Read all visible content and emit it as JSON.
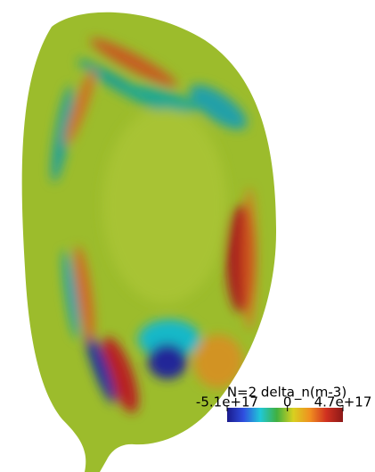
{
  "chart_data": {
    "type": "heatmap",
    "title": "N=2 delta_n(m-3)",
    "clim": [
      -5.1e+17,
      4.7e+17
    ],
    "cticks": [
      {
        "value": -5.1e+17,
        "label": "-5.1e+17"
      },
      0,
      {
        "value": 4.7e+17,
        "label": "4.7e+17"
      }
    ],
    "colormap": [
      "#1a1a8c",
      "#2f4fe0",
      "#20c8d8",
      "#40b040",
      "#d8d020",
      "#f09020",
      "#d03020",
      "#8c1818"
    ]
  }
}
